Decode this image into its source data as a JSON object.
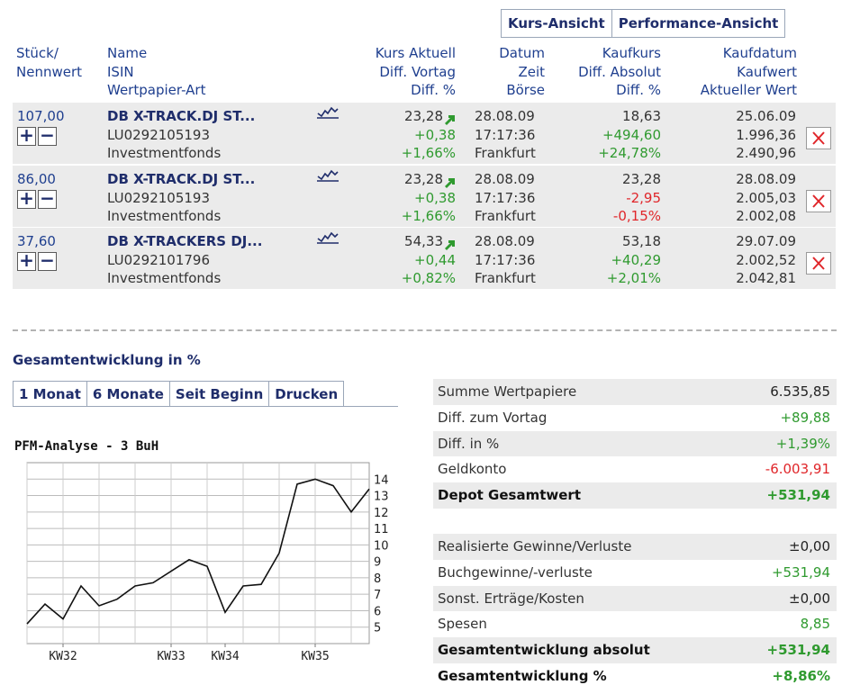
{
  "view_tabs": {
    "kurs": "Kurs-Ansicht",
    "performance": "Performance-Ansicht"
  },
  "header": {
    "col1": [
      "Stück/",
      "Nennwert"
    ],
    "col2": [
      "Name",
      "ISIN",
      "Wertpapier-Art"
    ],
    "col3": [
      "Kurs Aktuell",
      "Diff. Vortag",
      "Diff. %"
    ],
    "col4": [
      "Datum",
      "Zeit",
      "Börse"
    ],
    "col5": [
      "Kaufkurs",
      "Diff. Absolut",
      "Diff. %"
    ],
    "col6": [
      "Kaufdatum",
      "Kaufwert",
      "Aktueller Wert"
    ]
  },
  "buttons": {
    "plus": "+",
    "minus": "−"
  },
  "positions": [
    {
      "qty": "107,00",
      "name": "DB X-TRACK.DJ ST...",
      "isin": "LU0292105193",
      "type": "Investmentfonds",
      "price": "23,28",
      "diff_prev": "+0,38",
      "diff_pct": "+1,66%",
      "date": "28.08.09",
      "time": "17:17:36",
      "exchange": "Frankfurt",
      "buy_price": "18,63",
      "diff_abs": "+494,60",
      "diff_abs_pct": "+24,78%",
      "buy_date": "25.06.09",
      "buy_value": "1.996,36",
      "current_value": "2.490,96",
      "sign": "pos"
    },
    {
      "qty": "86,00",
      "name": "DB X-TRACK.DJ ST...",
      "isin": "LU0292105193",
      "type": "Investmentfonds",
      "price": "23,28",
      "diff_prev": "+0,38",
      "diff_pct": "+1,66%",
      "date": "28.08.09",
      "time": "17:17:36",
      "exchange": "Frankfurt",
      "buy_price": "23,28",
      "diff_abs": "-2,95",
      "diff_abs_pct": "-0,15%",
      "buy_date": "28.08.09",
      "buy_value": "2.005,03",
      "current_value": "2.002,08",
      "sign": "neg"
    },
    {
      "qty": "37,60",
      "name": "DB X-TRACKERS DJ...",
      "isin": "LU0292101796",
      "type": "Investmentfonds",
      "price": "54,33",
      "diff_prev": "+0,44",
      "diff_pct": "+0,82%",
      "date": "28.08.09",
      "time": "17:17:36",
      "exchange": "Frankfurt",
      "buy_price": "53,18",
      "diff_abs": "+40,29",
      "diff_abs_pct": "+2,01%",
      "buy_date": "29.07.09",
      "buy_value": "2.002,52",
      "current_value": "2.042,81",
      "sign": "pos"
    }
  ],
  "section_title": "Gesamtentwicklung in %",
  "range_tabs": [
    "1 Monat",
    "6 Monate",
    "Seit Beginn",
    "Drucken"
  ],
  "chart_data": {
    "type": "line",
    "title": "PFM-Analyse - 3 BuH",
    "x_ticks": [
      "KW32",
      "KW33",
      "KW34",
      "KW35"
    ],
    "x_tick_index": [
      2,
      8,
      11,
      16
    ],
    "y_ticks": [
      5,
      6,
      7,
      8,
      9,
      10,
      11,
      12,
      13,
      14
    ],
    "ylim": [
      4,
      15
    ],
    "values": [
      5.2,
      6.4,
      5.5,
      7.5,
      6.3,
      6.7,
      7.5,
      7.7,
      8.4,
      9.1,
      8.7,
      5.9,
      7.5,
      7.6,
      9.5,
      13.7,
      14.0,
      13.6,
      12.0,
      13.4
    ],
    "line_color": "#111111",
    "grid": true
  },
  "summary1": [
    {
      "label": "Summe Wertpapiere",
      "value": "6.535,85",
      "color": "dark",
      "bold": false
    },
    {
      "label": "Diff. zum Vortag",
      "value": "+89,88",
      "color": "green",
      "bold": false
    },
    {
      "label": "Diff. in %",
      "value": "+1,39%",
      "color": "green",
      "bold": false
    },
    {
      "label": "Geldkonto",
      "value": "-6.003,91",
      "color": "red",
      "bold": false
    },
    {
      "label": "Depot Gesamtwert",
      "value": "+531,94",
      "color": "green",
      "bold": true
    }
  ],
  "summary2": [
    {
      "label": "Realisierte Gewinne/Verluste",
      "value": "±0,00",
      "color": "dark",
      "bold": false
    },
    {
      "label": "Buchgewinne/-verluste",
      "value": "+531,94",
      "color": "green",
      "bold": false
    },
    {
      "label": "Sonst. Erträge/Kosten",
      "value": "±0,00",
      "color": "dark",
      "bold": false
    },
    {
      "label": "Spesen",
      "value": "8,85",
      "color": "green",
      "bold": false
    },
    {
      "label": "Gesamtentwicklung absolut",
      "value": "+531,94",
      "color": "green",
      "bold": true
    },
    {
      "label": "Gesamtentwicklung %",
      "value": "+8,86%",
      "color": "green",
      "bold": true
    }
  ],
  "colors": {
    "navy": "#1f2d6b",
    "green": "#2f9a2f",
    "red": "#e0262a",
    "row_shade": "#ebebeb"
  }
}
